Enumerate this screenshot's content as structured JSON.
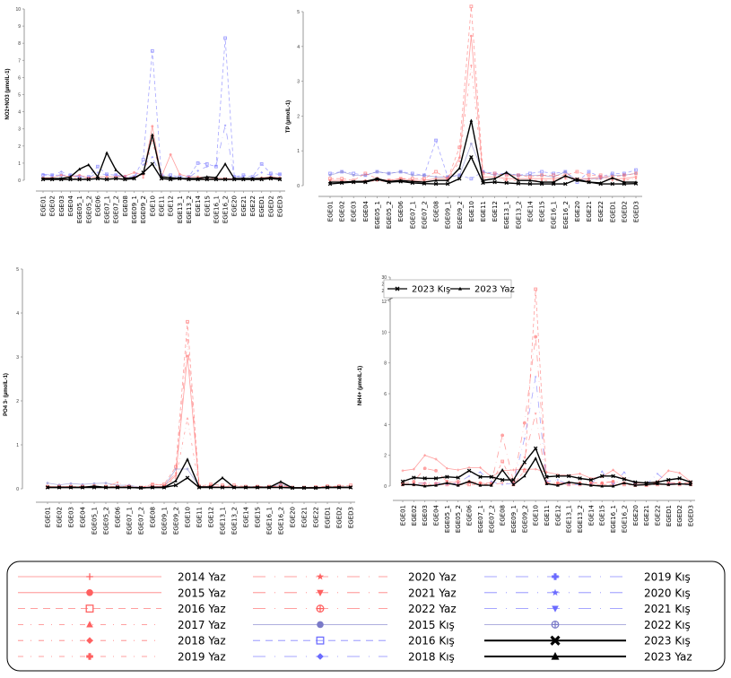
{
  "stations": [
    "EGE01",
    "EGE02",
    "EGE03",
    "EGE04",
    "EGE05_1",
    "EGE05_2",
    "EGE06",
    "EGE07_1",
    "EGE07_2",
    "EGE08",
    "EGE09_1",
    "EGE09_2",
    "EGE10",
    "EGE11",
    "EGE12",
    "EGE13_1",
    "EGE13_2",
    "EGE14",
    "EGE15",
    "EGE16_1",
    "EGE16_2",
    "EGE20",
    "EGE21",
    "EGE22",
    "EGED1",
    "EGED2",
    "EGED3"
  ],
  "styles": {
    "2014 Yaz": {
      "color": "#ff6060",
      "dash": "",
      "marker": "plus"
    },
    "2015 Yaz": {
      "color": "#ff6060",
      "dash": "",
      "marker": "circle"
    },
    "2016 Yaz": {
      "color": "#ff6060",
      "dash": "8 6",
      "marker": "square-open"
    },
    "2017 Yaz": {
      "color": "#ff6060",
      "dash": "6 8 1 8",
      "marker": "triangle"
    },
    "2018 Yaz": {
      "color": "#ff6060",
      "dash": "6 8 1 8",
      "marker": "diamond"
    },
    "2019 Yaz": {
      "color": "#ff6060",
      "dash": "6 8 1 8",
      "marker": "cross"
    },
    "2020 Yaz": {
      "color": "#ff6060",
      "dash": "14 10 1 10",
      "marker": "star"
    },
    "2021 Yaz": {
      "color": "#ff6060",
      "dash": "14 10 1 10",
      "marker": "triangle-down"
    },
    "2022 Yaz": {
      "color": "#ff6060",
      "dash": "14 10 1 10",
      "marker": "circle-plus"
    },
    "2015 Kış": {
      "color": "#7a7ac8",
      "dash": "",
      "marker": "circle"
    },
    "2016 Kış": {
      "color": "#6b6bff",
      "dash": "8 6",
      "marker": "square-open"
    },
    "2018 Kış": {
      "color": "#6b6bff",
      "dash": "14 10 1 10",
      "marker": "diamond"
    },
    "2019 Kış": {
      "color": "#6b6bff",
      "dash": "14 10 1 10",
      "marker": "cross"
    },
    "2020 Kış": {
      "color": "#6b6bff",
      "dash": "14 10 1 10",
      "marker": "star"
    },
    "2021 Kış": {
      "color": "#6b6bff",
      "dash": "14 10 1 10",
      "marker": "triangle-down"
    },
    "2022 Kış": {
      "color": "#7a7ac8",
      "dash": "",
      "marker": "circle-plus"
    },
    "2023 Kış": {
      "color": "#000000",
      "dash": "",
      "marker": "x"
    },
    "2023 Yaz": {
      "color": "#000000",
      "dash": "",
      "marker": "triangle"
    }
  },
  "chart_data": [
    {
      "type": "line",
      "ylabel": "NO2+NO3 (µmolL-1)",
      "ylim": [
        0,
        10
      ],
      "yticks": [
        "0",
        "1",
        "2",
        "3",
        "4",
        "5",
        "6",
        "7",
        "8",
        "9",
        "10"
      ],
      "series": [
        {
          "name": "2016 Kış",
          "values": [
            0.3,
            0.3,
            0.3,
            0.3,
            0.2,
            0.2,
            0.8,
            0.35,
            0.3,
            0.2,
            0.2,
            1.2,
            7.55,
            0.3,
            0.3,
            0.2,
            0.2,
            1.0,
            0.95,
            0.8,
            8.3,
            0.2,
            0.3,
            0.2,
            0.95,
            0.4,
            0.35
          ]
        },
        {
          "name": "2018 Kış",
          "values": [
            0.35,
            0.3,
            0.5,
            0.3,
            0.2,
            0.15,
            0.45,
            0.3,
            0.3,
            0.2,
            0.15,
            0.9,
            1.35,
            0.2,
            0.2,
            0.15,
            0.15,
            0.55,
            0.8,
            0.85,
            3.2,
            0.2,
            0.2,
            0.15,
            0.45,
            0.3,
            0.35
          ]
        },
        {
          "name": "2015 Yaz",
          "values": [
            0.15,
            0.15,
            0.3,
            0.2,
            0.3,
            0.15,
            0.2,
            0.2,
            0.2,
            0.25,
            0.45,
            0.3,
            3.15,
            0.2,
            1.5,
            0.35,
            0.2,
            0.2,
            0.15,
            0.15,
            0.1,
            0.1,
            0.1,
            0.1,
            0.15,
            0.2,
            0.15
          ]
        },
        {
          "name": "2018 Yaz",
          "values": [
            0.08,
            0.08,
            0.1,
            0.1,
            0.15,
            0.1,
            0.1,
            0.1,
            0.1,
            0.15,
            0.2,
            0.15,
            2.3,
            0.1,
            0.1,
            0.1,
            0.1,
            0.1,
            0.1,
            0.1,
            0.1,
            0.08,
            0.08,
            0.08,
            0.08,
            0.1,
            0.08
          ]
        },
        {
          "name": "2023 Kış",
          "values": [
            0.05,
            0.05,
            0.05,
            0.05,
            0.05,
            0.05,
            0.1,
            0.05,
            0.1,
            0.05,
            0.1,
            0.45,
            0.95,
            0.1,
            0.05,
            0.1,
            0.05,
            0.05,
            0.05,
            0.05,
            0.05,
            0.05,
            0.05,
            0.05,
            0.05,
            0.1,
            0.05
          ]
        },
        {
          "name": "2023 Yaz",
          "values": [
            0.1,
            0.1,
            0.1,
            0.2,
            0.65,
            0.9,
            0.2,
            1.6,
            0.6,
            0.1,
            0.15,
            0.4,
            2.65,
            0.2,
            0.15,
            0.1,
            0.1,
            0.1,
            0.2,
            0.15,
            0.95,
            0.1,
            0.1,
            0.1,
            0.1,
            0.15,
            0.1
          ]
        }
      ]
    },
    {
      "type": "line",
      "ylabel": "TP (µmolL-1)",
      "ylim": [
        0,
        5
      ],
      "yticks": [
        "0",
        "1",
        "2",
        "3",
        "4",
        "5"
      ],
      "series": [
        {
          "name": "2016 Kış",
          "values": [
            0.35,
            0.4,
            0.35,
            0.3,
            0.4,
            0.35,
            0.4,
            0.35,
            0.3,
            1.3,
            0.25,
            0.3,
            0.2,
            0.4,
            0.35,
            0.35,
            0.3,
            0.35,
            0.4,
            0.35,
            0.4,
            0.1,
            0.4,
            0.25,
            0.35,
            0.35,
            0.45
          ]
        },
        {
          "name": "2015 Kış",
          "values": [
            0.3,
            0.4,
            0.3,
            0.3,
            0.4,
            0.35,
            0.4,
            0.3,
            0.3,
            0.25,
            0.25,
            0.3,
            1.2,
            0.4,
            0.3,
            0.35,
            0.3,
            0.3,
            0.3,
            0.25,
            0.4,
            0.15,
            0.2,
            0.2,
            0.3,
            0.3,
            0.35
          ]
        },
        {
          "name": "2016 Yaz",
          "values": [
            0.2,
            0.2,
            0.15,
            0.35,
            0.2,
            0.15,
            0.2,
            0.2,
            0.2,
            0.4,
            0.2,
            1.1,
            5.15,
            0.35,
            0.35,
            0.3,
            0.3,
            0.25,
            0.3,
            0.3,
            0.3,
            0.4,
            0.3,
            0.3,
            0.25,
            0.3,
            0.35
          ]
        },
        {
          "name": "2015 Yaz",
          "values": [
            0.15,
            0.15,
            0.1,
            0.15,
            0.15,
            0.15,
            0.2,
            0.15,
            0.15,
            0.2,
            0.2,
            0.8,
            4.3,
            0.25,
            0.25,
            0.2,
            0.2,
            0.2,
            0.2,
            0.2,
            0.25,
            0.2,
            0.2,
            0.25,
            0.2,
            0.2,
            0.25
          ]
        },
        {
          "name": "2018 Yaz",
          "values": [
            0.1,
            0.1,
            0.1,
            0.1,
            0.15,
            0.1,
            0.15,
            0.1,
            0.1,
            0.15,
            0.15,
            0.7,
            3.45,
            0.2,
            0.2,
            0.15,
            0.15,
            0.15,
            0.15,
            0.15,
            0.2,
            0.15,
            0.15,
            0.2,
            0.15,
            0.15,
            0.2
          ]
        },
        {
          "name": "2023 Kış",
          "values": [
            0.05,
            0.08,
            0.1,
            0.1,
            0.18,
            0.1,
            0.12,
            0.08,
            0.06,
            0.05,
            0.05,
            0.2,
            0.82,
            0.08,
            0.1,
            0.08,
            0.06,
            0.05,
            0.05,
            0.05,
            0.05,
            0.18,
            0.1,
            0.05,
            0.05,
            0.05,
            0.06
          ]
        },
        {
          "name": "2023 Yaz",
          "values": [
            0.1,
            0.1,
            0.12,
            0.12,
            0.2,
            0.12,
            0.15,
            0.12,
            0.1,
            0.15,
            0.15,
            0.5,
            1.87,
            0.15,
            0.2,
            0.38,
            0.15,
            0.15,
            0.1,
            0.1,
            0.28,
            0.15,
            0.1,
            0.08,
            0.22,
            0.1,
            0.1
          ]
        }
      ]
    },
    {
      "type": "line",
      "ylabel": "PO4 3- (µmolL-1)",
      "ylim": [
        0,
        5
      ],
      "yticks": [
        "0",
        "1",
        "2",
        "3",
        "4",
        "5"
      ],
      "series": [
        {
          "name": "2015 Kış",
          "values": [
            0.13,
            0.09,
            0.12,
            0.1,
            0.12,
            0.13,
            0.08,
            0.08,
            0.03,
            0.05,
            0.05,
            0.45,
            0.45,
            0.05,
            0.05,
            0.04,
            0.04,
            0.04,
            0.05,
            0.04,
            0.1,
            0.03,
            0.03,
            0.03,
            0.04,
            0.04,
            0.04
          ]
        },
        {
          "name": "2016 Yaz",
          "values": [
            0.05,
            0.05,
            0.05,
            0.05,
            0.06,
            0.05,
            0.05,
            0.05,
            0.03,
            0.1,
            0.1,
            0.5,
            3.8,
            0.06,
            0.1,
            0.08,
            0.08,
            0.05,
            0.05,
            0.05,
            0.08,
            0.03,
            0.03,
            0.04,
            0.06,
            0.06,
            0.08
          ]
        },
        {
          "name": "2021 Yaz",
          "values": [
            0.05,
            0.05,
            0.05,
            0.05,
            0.05,
            0.05,
            0.14,
            0.05,
            0.03,
            0.1,
            0.08,
            0.35,
            3.38,
            0.05,
            0.08,
            0.05,
            0.05,
            0.04,
            0.05,
            0.05,
            0.05,
            0.03,
            0.03,
            0.03,
            0.05,
            0.05,
            0.05
          ]
        },
        {
          "name": "2015 Yaz",
          "values": [
            0.04,
            0.04,
            0.04,
            0.04,
            0.04,
            0.04,
            0.05,
            0.04,
            0.03,
            0.05,
            0.06,
            0.3,
            3.02,
            0.05,
            0.05,
            0.04,
            0.04,
            0.04,
            0.04,
            0.04,
            0.05,
            0.03,
            0.03,
            0.03,
            0.04,
            0.04,
            0.04
          ]
        },
        {
          "name": "2017 Yaz",
          "values": [
            0.03,
            0.03,
            0.03,
            0.03,
            0.04,
            0.03,
            0.04,
            0.03,
            0.03,
            0.04,
            0.05,
            0.25,
            1.6,
            0.04,
            0.04,
            0.04,
            0.04,
            0.03,
            0.04,
            0.03,
            0.04,
            0.03,
            0.03,
            0.03,
            0.03,
            0.03,
            0.03
          ]
        },
        {
          "name": "2023 Kış",
          "values": [
            0.03,
            0.03,
            0.03,
            0.03,
            0.03,
            0.03,
            0.03,
            0.03,
            0.02,
            0.03,
            0.03,
            0.08,
            0.25,
            0.03,
            0.03,
            0.03,
            0.03,
            0.03,
            0.03,
            0.03,
            0.03,
            0.02,
            0.02,
            0.02,
            0.03,
            0.03,
            0.03
          ]
        },
        {
          "name": "2023 Yaz",
          "values": [
            0.03,
            0.03,
            0.03,
            0.03,
            0.06,
            0.03,
            0.03,
            0.03,
            0.02,
            0.03,
            0.03,
            0.18,
            0.67,
            0.04,
            0.04,
            0.25,
            0.03,
            0.03,
            0.03,
            0.03,
            0.16,
            0.02,
            0.02,
            0.02,
            0.03,
            0.03,
            0.03
          ]
        }
      ]
    },
    {
      "type": "line",
      "ylabel": "NH4+ (µmolL-1)",
      "ylim": [
        0,
        30
      ],
      "axis_break": [
        12,
        20
      ],
      "yticks": [
        "0",
        "2",
        "4",
        "6",
        "8",
        "10",
        "12",
        "20",
        "25",
        "30"
      ],
      "legend": "top-left",
      "legend_entries": [
        "2023 Kış",
        "2023 Yaz"
      ],
      "series": [
        {
          "name": "2014 Yaz",
          "values": [
            1.0,
            1.1,
            2.0,
            1.75,
            1.15,
            1.05,
            1.2,
            1.2,
            0.6,
            1.0,
            1.05,
            1.1,
            1.1,
            0.9,
            0.75,
            0.7,
            0.8,
            0.5,
            0.6,
            1.05,
            0.5,
            0.2,
            0.2,
            0.3,
            1.0,
            0.85,
            0.3
          ]
        },
        {
          "name": "2016 Yaz",
          "values": [
            0.1,
            0.1,
            0.1,
            0.1,
            0.1,
            0.1,
            0.1,
            0.1,
            0.1,
            1.6,
            0.1,
            1.0,
            21.0,
            0.2,
            0.1,
            0.1,
            0.1,
            0.1,
            0.1,
            0.1,
            0.1,
            0.05,
            0.05,
            0.1,
            0.1,
            0.1,
            0.1
          ]
        },
        {
          "name": "2022 Yaz",
          "values": [
            0.2,
            0.3,
            1.15,
            1.0,
            0.3,
            0.3,
            0.3,
            0.2,
            0.2,
            3.3,
            0.3,
            4.1,
            9.7,
            0.2,
            0.2,
            0.2,
            0.2,
            0.2,
            0.2,
            0.3,
            0.2,
            0.1,
            0.1,
            0.2,
            0.2,
            0.2,
            0.2
          ]
        },
        {
          "name": "2020 Kış",
          "values": [
            0.1,
            0.15,
            0.2,
            0.2,
            0.1,
            0.2,
            0.65,
            0.9,
            0.3,
            0.1,
            0.2,
            3.1,
            7.1,
            0.3,
            0.4,
            0.1,
            0.1,
            0.1,
            0.95,
            0.1,
            0.9,
            0.1,
            0.1,
            0.8,
            0.2,
            0.1,
            0.1
          ]
        },
        {
          "name": "2021 Yaz",
          "values": [
            0.1,
            0.2,
            0.2,
            0.2,
            0.3,
            0.2,
            0.2,
            0.2,
            0.1,
            0.2,
            0.2,
            1.85,
            4.7,
            0.2,
            0.2,
            0.2,
            0.2,
            0.2,
            0.2,
            0.3,
            0.2,
            0.1,
            0.1,
            0.2,
            0.2,
            0.2,
            0.2
          ]
        },
        {
          "name": "2023 Kış",
          "values": [
            0.3,
            0.55,
            0.5,
            0.5,
            0.6,
            0.55,
            1.0,
            0.6,
            0.6,
            0.4,
            0.4,
            1.55,
            2.45,
            0.6,
            0.65,
            0.65,
            0.5,
            0.4,
            0.65,
            0.65,
            0.45,
            0.25,
            0.2,
            0.25,
            0.4,
            0.5,
            0.25
          ]
        },
        {
          "name": "2023 Yaz",
          "values": [
            0.1,
            0.1,
            0.0,
            0.05,
            0.2,
            0.05,
            0.3,
            0.05,
            0.05,
            1.05,
            0.1,
            0.65,
            1.8,
            0.15,
            0.05,
            0.25,
            0.15,
            0.05,
            0.0,
            0.0,
            0.2,
            0.05,
            0.1,
            0.15,
            0.1,
            0.15,
            0.1
          ]
        }
      ]
    }
  ],
  "legend": {
    "columns": [
      [
        "2014 Yaz",
        "2015 Yaz",
        "2016 Yaz",
        "2017 Yaz",
        "2018 Yaz",
        "2019 Yaz"
      ],
      [
        "2020 Yaz",
        "2021 Yaz",
        "2022 Yaz",
        "2015 Kış",
        "2016 Kış",
        "2018 Kış"
      ],
      [
        "2019 Kış",
        "2020 Kış",
        "2021 Kış",
        "2022 Kış",
        "2023 Kış",
        "2023 Yaz"
      ]
    ]
  }
}
